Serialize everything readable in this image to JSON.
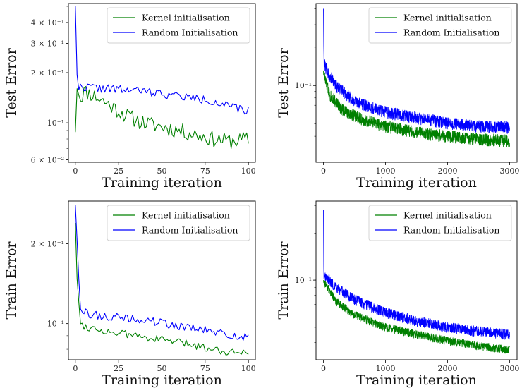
{
  "chart_data": [
    {
      "type": "line",
      "xlabel": "Training iteration",
      "ylabel": "Test Error",
      "yscale": "log",
      "xlim": [
        -4,
        104
      ],
      "ylim": [
        0.058,
        0.52
      ],
      "xticks": [
        0,
        25,
        50,
        75,
        100
      ],
      "xtick_labels": [
        "0",
        "25",
        "50",
        "75",
        "100"
      ],
      "yticks": [
        0.06,
        0.1,
        0.2,
        0.3,
        0.4
      ],
      "ytick_labels": [
        "6 × 10⁻²",
        "10⁻¹",
        "2 × 10⁻¹",
        "3 × 10⁻¹",
        "4 × 10⁻¹"
      ],
      "legend_position": "top-right",
      "series": [
        {
          "name": "Kernel initialisation",
          "color": "#008000",
          "x_range": [
            0,
            100
          ],
          "n_points": 101,
          "keypoints": [
            [
              0,
              0.088
            ],
            [
              1,
              0.17
            ],
            [
              3,
              0.14
            ],
            [
              5,
              0.155
            ],
            [
              10,
              0.148
            ],
            [
              20,
              0.128
            ],
            [
              30,
              0.11
            ],
            [
              40,
              0.1
            ],
            [
              50,
              0.095
            ],
            [
              60,
              0.09
            ],
            [
              70,
              0.085
            ],
            [
              80,
              0.08
            ],
            [
              90,
              0.078
            ],
            [
              100,
              0.08
            ]
          ],
          "noise": 0.1,
          "seed": 11
        },
        {
          "name": "Random Initialisation",
          "color": "#0000ff",
          "x_range": [
            0,
            100
          ],
          "n_points": 101,
          "keypoints": [
            [
              0,
              0.5
            ],
            [
              1,
              0.2
            ],
            [
              2,
              0.162
            ],
            [
              5,
              0.165
            ],
            [
              20,
              0.16
            ],
            [
              40,
              0.155
            ],
            [
              60,
              0.145
            ],
            [
              80,
              0.135
            ],
            [
              95,
              0.12
            ],
            [
              100,
              0.118
            ]
          ],
          "noise": 0.055,
          "seed": 22
        }
      ]
    },
    {
      "type": "line",
      "xlabel": "Training iteration",
      "ylabel": "Test Error",
      "yscale": "log",
      "xlim": [
        -120,
        3120
      ],
      "ylim": [
        0.025,
        0.44
      ],
      "xticks": [
        0,
        1000,
        2000,
        3000
      ],
      "xtick_labels": [
        "0",
        "1000",
        "2000",
        "3000"
      ],
      "yticks": [
        0.1
      ],
      "ytick_labels": [
        "10⁻¹"
      ],
      "legend_position": "top-right",
      "series": [
        {
          "name": "Kernel initialisation",
          "color": "#008000",
          "x_range": [
            0,
            3000
          ],
          "n_points": 1200,
          "keypoints": [
            [
              0,
              0.13
            ],
            [
              30,
              0.11
            ],
            [
              100,
              0.085
            ],
            [
              300,
              0.065
            ],
            [
              600,
              0.055
            ],
            [
              1000,
              0.048
            ],
            [
              1500,
              0.043
            ],
            [
              2000,
              0.04
            ],
            [
              2500,
              0.038
            ],
            [
              3000,
              0.037
            ]
          ],
          "noise": 0.1,
          "seed": 33
        },
        {
          "name": "Random Initialisation",
          "color": "#0000ff",
          "x_range": [
            0,
            3000
          ],
          "n_points": 1200,
          "keypoints": [
            [
              0,
              0.4
            ],
            [
              8,
              0.15
            ],
            [
              60,
              0.13
            ],
            [
              200,
              0.1
            ],
            [
              500,
              0.075
            ],
            [
              1000,
              0.062
            ],
            [
              1500,
              0.056
            ],
            [
              2000,
              0.051
            ],
            [
              2500,
              0.048
            ],
            [
              3000,
              0.047
            ]
          ],
          "noise": 0.1,
          "seed": 44
        }
      ]
    },
    {
      "type": "line",
      "xlabel": "Training iteration",
      "ylabel": "Train Error",
      "yscale": "log",
      "xlim": [
        -4,
        104
      ],
      "ylim": [
        0.073,
        0.29
      ],
      "xticks": [
        0,
        25,
        50,
        75,
        100
      ],
      "xtick_labels": [
        "0",
        "25",
        "50",
        "75",
        "100"
      ],
      "yticks": [
        0.1,
        0.2
      ],
      "ytick_labels": [
        "10⁻¹",
        "2 × 10⁻¹"
      ],
      "legend_position": "top-right",
      "series": [
        {
          "name": "Kernel initialisation",
          "color": "#008000",
          "x_range": [
            0,
            100
          ],
          "n_points": 101,
          "keypoints": [
            [
              0,
              0.24
            ],
            [
              1,
              0.15
            ],
            [
              3,
              0.1
            ],
            [
              5,
              0.098
            ],
            [
              10,
              0.096
            ],
            [
              20,
              0.093
            ],
            [
              40,
              0.089
            ],
            [
              60,
              0.085
            ],
            [
              80,
              0.08
            ],
            [
              90,
              0.078
            ],
            [
              100,
              0.079
            ]
          ],
          "noise": 0.03,
          "seed": 55
        },
        {
          "name": "Random Initialisation",
          "color": "#0000ff",
          "x_range": [
            0,
            100
          ],
          "n_points": 101,
          "keypoints": [
            [
              0,
              0.28
            ],
            [
              1,
              0.21
            ],
            [
              2,
              0.15
            ],
            [
              3,
              0.118
            ],
            [
              5,
              0.11
            ],
            [
              10,
              0.108
            ],
            [
              20,
              0.106
            ],
            [
              40,
              0.103
            ],
            [
              60,
              0.098
            ],
            [
              80,
              0.093
            ],
            [
              90,
              0.09
            ],
            [
              100,
              0.089
            ]
          ],
          "noise": 0.035,
          "seed": 66
        }
      ]
    },
    {
      "type": "line",
      "xlabel": "Training iteration",
      "ylabel": "Train Error",
      "yscale": "log",
      "xlim": [
        -120,
        3120
      ],
      "ylim": [
        0.031,
        0.32
      ],
      "xticks": [
        0,
        1000,
        2000,
        3000
      ],
      "xtick_labels": [
        "0",
        "1000",
        "2000",
        "3000"
      ],
      "yticks": [
        0.1
      ],
      "ytick_labels": [
        "10⁻¹"
      ],
      "legend_position": "top-right",
      "series": [
        {
          "name": "Kernel initialisation",
          "color": "#008000",
          "x_range": [
            0,
            3000
          ],
          "n_points": 1200,
          "keypoints": [
            [
              0,
              0.1
            ],
            [
              50,
              0.092
            ],
            [
              200,
              0.073
            ],
            [
              500,
              0.06
            ],
            [
              1000,
              0.05
            ],
            [
              1500,
              0.045
            ],
            [
              2000,
              0.041
            ],
            [
              2500,
              0.038
            ],
            [
              3000,
              0.036
            ]
          ],
          "noise": 0.055,
          "seed": 77
        },
        {
          "name": "Random Initialisation",
          "color": "#0000ff",
          "x_range": [
            0,
            3000
          ],
          "n_points": 1200,
          "keypoints": [
            [
              0,
              0.28
            ],
            [
              6,
              0.11
            ],
            [
              50,
              0.105
            ],
            [
              200,
              0.09
            ],
            [
              500,
              0.075
            ],
            [
              1000,
              0.062
            ],
            [
              1500,
              0.055
            ],
            [
              2000,
              0.05
            ],
            [
              2500,
              0.047
            ],
            [
              3000,
              0.045
            ]
          ],
          "noise": 0.07,
          "seed": 88
        }
      ]
    }
  ]
}
